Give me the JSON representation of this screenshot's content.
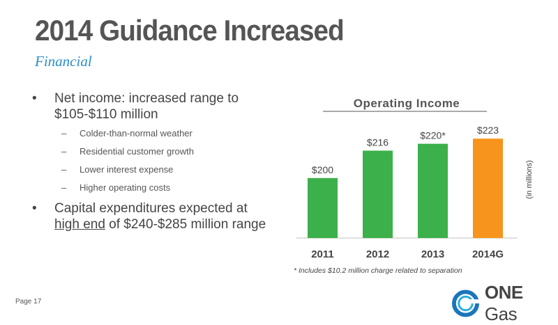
{
  "slide": {
    "title": "2014 Guidance Increased",
    "subtitle": "Financial",
    "page": "Page 17"
  },
  "bullets": [
    {
      "lines": [
        "Net income: increased range to",
        "$105-$110 million"
      ],
      "subs": [
        "Colder-than-normal weather",
        "Residential customer growth",
        "Lower interest expense",
        "Higher operating costs"
      ]
    },
    {
      "line1": "Capital expenditures expected at",
      "line2_underlined": "high end",
      "line2_rest": " of $240-$285 million range"
    }
  ],
  "logo": {
    "one": "ONE",
    "gas": "Gas"
  },
  "chart_data": {
    "type": "bar",
    "title": "Operating Income",
    "categories": [
      "2011",
      "2012",
      "2013",
      "2014G"
    ],
    "values": [
      200,
      216,
      220,
      223
    ],
    "data_labels": [
      "$200",
      "$216",
      "$220*",
      "$223"
    ],
    "colors": [
      "#3cb04a",
      "#3cb04a",
      "#3cb04a",
      "#f7941d"
    ],
    "unit_label": "(in millions)",
    "footnote": "* Includes $10.2 million charge related to separation",
    "ylim": [
      165,
      230
    ],
    "grid": false,
    "legend": "none"
  }
}
